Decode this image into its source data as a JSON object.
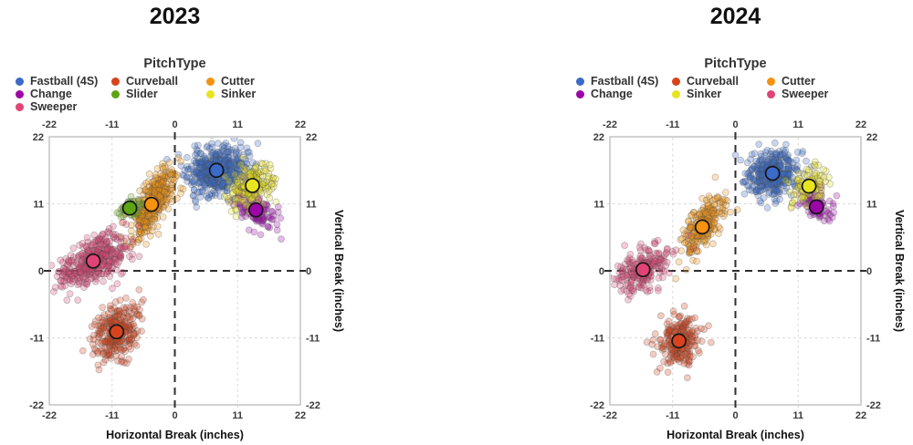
{
  "chart_data": [
    {
      "type": "scatter",
      "title": "2023",
      "legend_title": "PitchType",
      "legend_position": "top",
      "xlabel": "Horizontal Break (inches)",
      "ylabel": "Vertical Break (inches)",
      "xlim": [
        -22,
        22
      ],
      "ylim": [
        -22,
        22
      ],
      "xticks": [
        -22,
        -11,
        0,
        11,
        22
      ],
      "yticks": [
        -22,
        -11,
        0,
        11,
        22
      ],
      "grid_lines": [
        -11,
        11
      ],
      "zero_lines": true,
      "series": [
        {
          "name": "Fastball (4S)",
          "color": "#3B6AC9",
          "centroid": {
            "x": 7.3,
            "y": 16.5
          },
          "sd": {
            "x": 2.5,
            "y": 2.0
          },
          "rho": 0.15,
          "count": 480,
          "seed": 11
        },
        {
          "name": "Curveball",
          "color": "#D8431E",
          "centroid": {
            "x": -10.2,
            "y": -10.0
          },
          "sd": {
            "x": 1.9,
            "y": 2.2
          },
          "rho": 0.3,
          "count": 300,
          "seed": 12
        },
        {
          "name": "Cutter",
          "color": "#F6920F",
          "centroid": {
            "x": -4.1,
            "y": 10.9
          },
          "sd": {
            "x": 2.0,
            "y": 2.9
          },
          "rho": 0.72,
          "count": 380,
          "seed": 13
        },
        {
          "name": "Change",
          "color": "#9C05A8",
          "centroid": {
            "x": 14.2,
            "y": 10.0
          },
          "sd": {
            "x": 1.8,
            "y": 1.5
          },
          "rho": -0.4,
          "count": 120,
          "seed": 14
        },
        {
          "name": "Slider",
          "color": "#5CA513",
          "centroid": {
            "x": -7.9,
            "y": 10.3
          },
          "sd": {
            "x": 1.1,
            "y": 0.9
          },
          "rho": 0.3,
          "count": 55,
          "seed": 15
        },
        {
          "name": "Sinker",
          "color": "#E8E41F",
          "centroid": {
            "x": 13.6,
            "y": 14.0
          },
          "sd": {
            "x": 1.9,
            "y": 1.8
          },
          "rho": 0.2,
          "count": 200,
          "seed": 16
        },
        {
          "name": "Sweeper",
          "color": "#E04476",
          "centroid": {
            "x": -14.3,
            "y": 1.6
          },
          "sd": {
            "x": 3.0,
            "y": 2.2
          },
          "rho": 0.55,
          "count": 400,
          "seed": 17
        }
      ]
    },
    {
      "type": "scatter",
      "title": "2024",
      "legend_title": "PitchType",
      "legend_position": "top",
      "xlabel": "Horizontal Break (inches)",
      "ylabel": "Vertical Break (inches)",
      "xlim": [
        -22,
        22
      ],
      "ylim": [
        -22,
        22
      ],
      "xticks": [
        -22,
        -11,
        0,
        11,
        22
      ],
      "yticks": [
        -22,
        -11,
        0,
        11,
        22
      ],
      "grid_lines": [
        -11,
        11
      ],
      "zero_lines": true,
      "series": [
        {
          "name": "Fastball (4S)",
          "color": "#3B6AC9",
          "centroid": {
            "x": 6.5,
            "y": 16.0
          },
          "sd": {
            "x": 2.3,
            "y": 2.0
          },
          "rho": 0.2,
          "count": 380,
          "seed": 21
        },
        {
          "name": "Curveball",
          "color": "#D8431E",
          "centroid": {
            "x": -9.9,
            "y": -11.5
          },
          "sd": {
            "x": 1.8,
            "y": 2.0
          },
          "rho": 0.25,
          "count": 240,
          "seed": 22
        },
        {
          "name": "Cutter",
          "color": "#F6920F",
          "centroid": {
            "x": -5.8,
            "y": 7.2
          },
          "sd": {
            "x": 1.8,
            "y": 2.5
          },
          "rho": 0.68,
          "count": 250,
          "seed": 23
        },
        {
          "name": "Change",
          "color": "#9C05A8",
          "centroid": {
            "x": 14.2,
            "y": 10.5
          },
          "sd": {
            "x": 1.6,
            "y": 1.3
          },
          "rho": -0.35,
          "count": 75,
          "seed": 24
        },
        {
          "name": "Sinker",
          "color": "#E8E41F",
          "centroid": {
            "x": 12.9,
            "y": 13.9
          },
          "sd": {
            "x": 1.6,
            "y": 1.5
          },
          "rho": 0.25,
          "count": 110,
          "seed": 25
        },
        {
          "name": "Sweeper",
          "color": "#E04476",
          "centroid": {
            "x": -16.2,
            "y": 0.2
          },
          "sd": {
            "x": 2.6,
            "y": 2.0
          },
          "rho": 0.5,
          "count": 220,
          "seed": 26
        }
      ]
    }
  ]
}
